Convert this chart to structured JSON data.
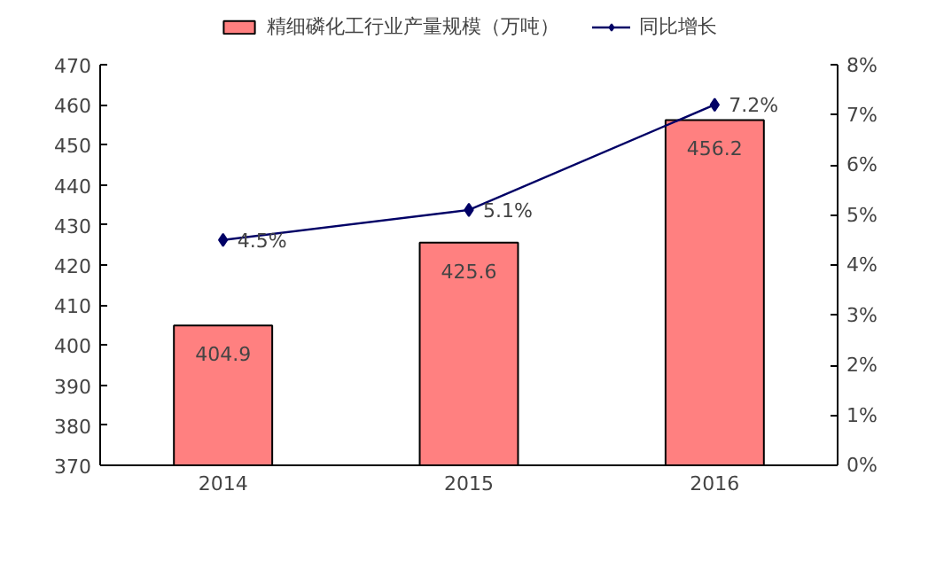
{
  "chart_data": {
    "type": "bar",
    "categories": [
      "2014",
      "2015",
      "2016"
    ],
    "series": [
      {
        "name": "精细磷化工行业产量规模（万吨）",
        "type": "bar",
        "color": "#ff8080",
        "values": [
          404.9,
          425.6,
          456.2
        ],
        "value_labels": [
          "404.9",
          "425.6",
          "456.2"
        ]
      },
      {
        "name": "同比增长",
        "type": "line",
        "axis": "y2",
        "color": "#000066",
        "values": [
          4.5,
          5.1,
          7.2
        ],
        "value_labels": [
          "4.5%",
          "5.1%",
          "7.2%"
        ],
        "marker": "diamond"
      }
    ],
    "ylim": [
      370,
      470
    ],
    "yticks": [
      370,
      380,
      390,
      400,
      410,
      420,
      430,
      440,
      450,
      460,
      470
    ],
    "y2lim": [
      0,
      8
    ],
    "y2ticks": [
      {
        "value": 0,
        "label": "0%"
      },
      {
        "value": 1,
        "label": "1%"
      },
      {
        "value": 2,
        "label": "2%"
      },
      {
        "value": 3,
        "label": "3%"
      },
      {
        "value": 4,
        "label": "4%"
      },
      {
        "value": 5,
        "label": "5%"
      },
      {
        "value": 6,
        "label": "6%"
      },
      {
        "value": 7,
        "label": "7%"
      },
      {
        "value": 8,
        "label": "8%"
      }
    ],
    "legend": "top",
    "grid": false
  }
}
